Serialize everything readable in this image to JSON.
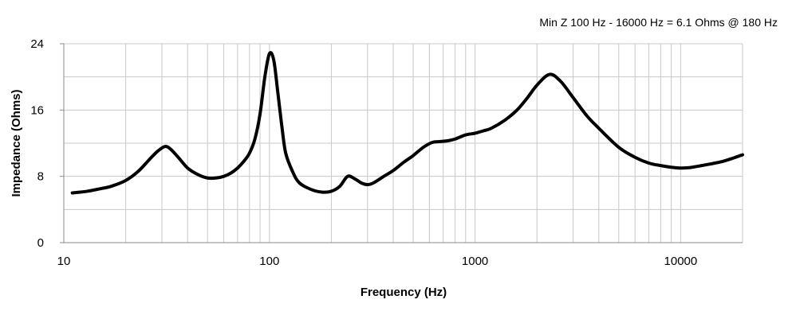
{
  "chart_data": {
    "type": "line",
    "annotation": "Min Z  100 Hz - 16000 Hz = 6.1 Ohms @ 180 Hz",
    "xlabel": "Frequency (Hz)",
    "ylabel": "Impedance (Ohms)",
    "xscale": "log",
    "xlim": [
      10,
      20000
    ],
    "ylim": [
      0,
      24
    ],
    "x_ticks": [
      10,
      100,
      1000,
      10000
    ],
    "x_tick_labels": [
      "10",
      "100",
      "1000",
      "10000"
    ],
    "y_ticks": [
      0,
      8,
      16,
      24
    ],
    "y_tick_labels": [
      "0",
      "8",
      "16",
      "24"
    ],
    "grid": true,
    "line_color": "#000000",
    "series": [
      {
        "x": [
          11,
          13,
          15,
          17,
          20,
          23,
          26,
          28.5,
          31,
          33,
          36,
          40,
          45,
          50,
          55,
          60,
          65,
          70,
          75,
          80,
          85,
          90,
          95,
          100,
          105,
          110,
          115,
          120,
          130,
          140,
          160,
          180,
          200,
          220,
          240,
          260,
          280,
          300,
          320,
          360,
          400,
          450,
          500,
          560,
          620,
          680,
          740,
          800,
          900,
          1000,
          1100,
          1200,
          1400,
          1600,
          1800,
          2000,
          2300,
          2600,
          3000,
          3500,
          4000,
          5000,
          6000,
          7000,
          8000,
          9000,
          10000,
          11000,
          12000,
          14000,
          16000,
          18000,
          20000
        ],
        "y": [
          6.0,
          6.2,
          6.5,
          6.8,
          7.5,
          8.6,
          10.0,
          11.0,
          11.6,
          11.3,
          10.3,
          9.0,
          8.2,
          7.8,
          7.8,
          8.0,
          8.4,
          9.0,
          9.8,
          10.8,
          12.5,
          15.5,
          20.0,
          22.8,
          22.0,
          18.0,
          14.0,
          10.8,
          8.5,
          7.2,
          6.4,
          6.1,
          6.2,
          6.8,
          8.0,
          7.7,
          7.2,
          7.0,
          7.2,
          8.0,
          8.7,
          9.7,
          10.5,
          11.5,
          12.1,
          12.2,
          12.3,
          12.5,
          13.0,
          13.2,
          13.5,
          13.8,
          14.8,
          16.0,
          17.5,
          19.0,
          20.3,
          19.5,
          17.5,
          15.3,
          13.8,
          11.5,
          10.3,
          9.6,
          9.3,
          9.1,
          9.0,
          9.05,
          9.2,
          9.5,
          9.8,
          10.2,
          10.6
        ]
      }
    ]
  }
}
